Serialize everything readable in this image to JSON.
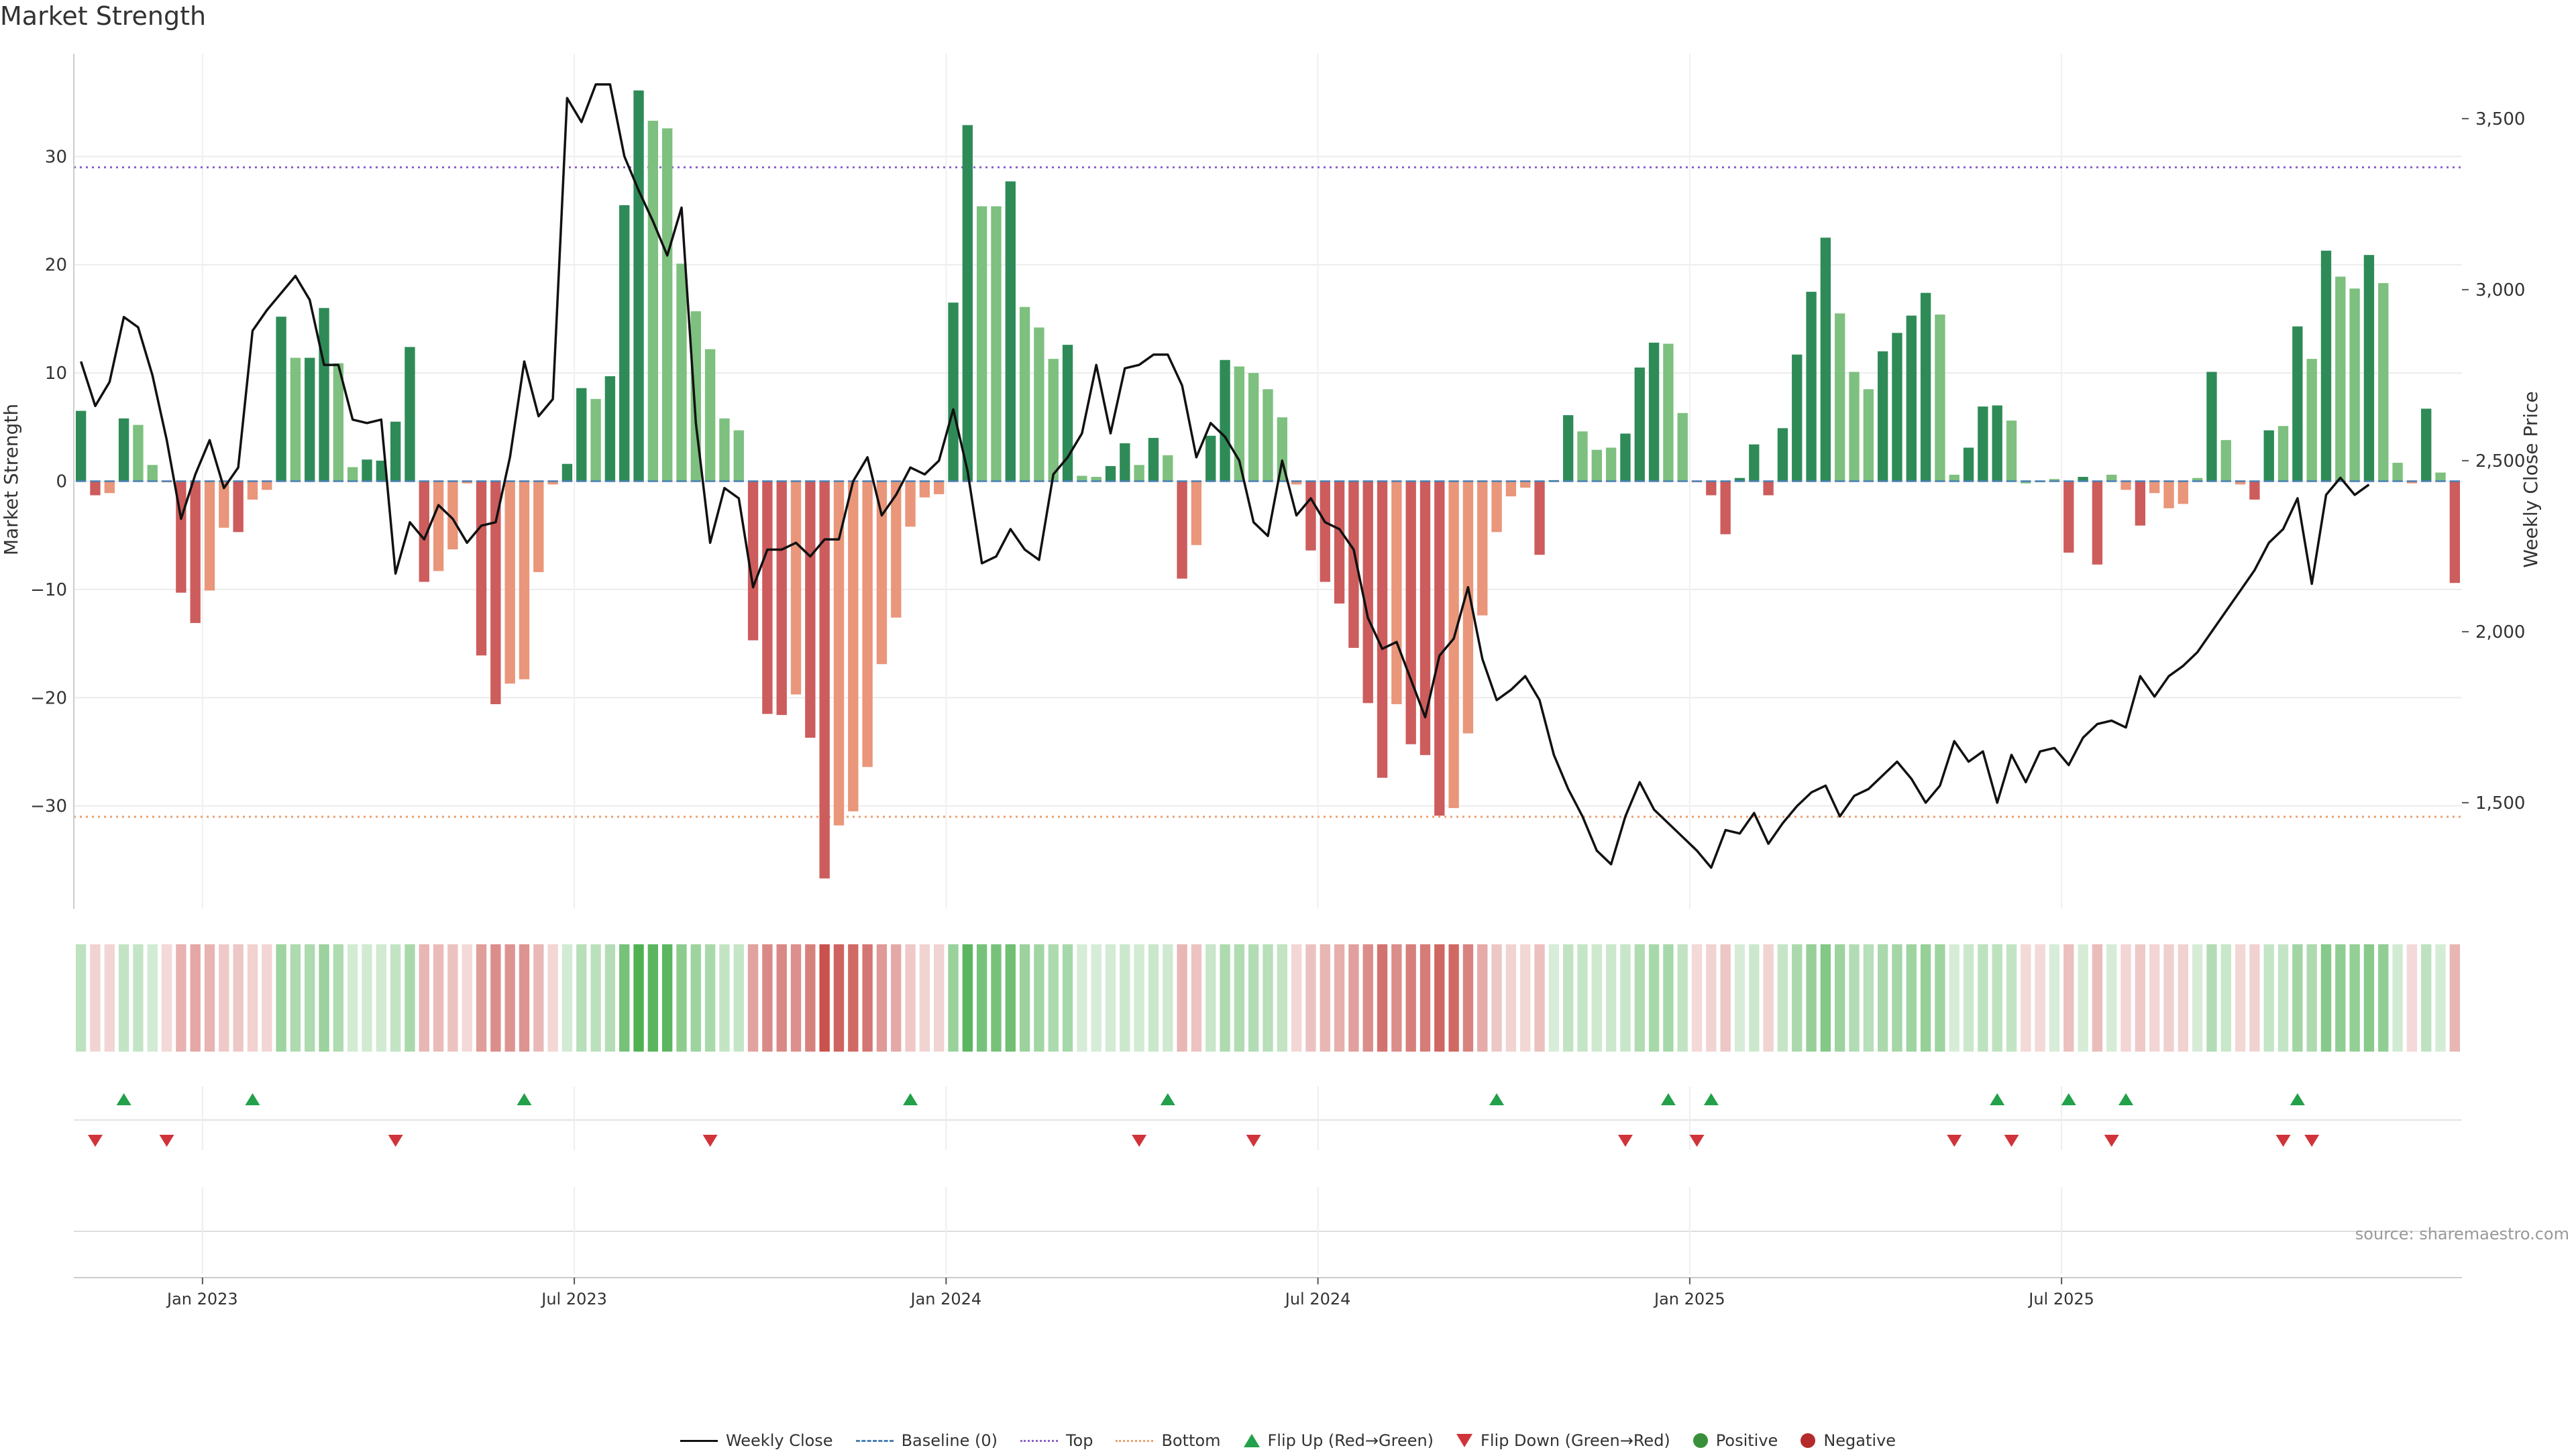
{
  "chart_data": {
    "type": "bar",
    "title": "Market Strength",
    "ylabel": "Market Strength",
    "y2label": "Weekly Close Price",
    "source": "source: sharemaestro.com",
    "ylim": [
      -39.5,
      39.5
    ],
    "y2lim": [
      1190,
      3690
    ],
    "yticks": [
      "−30",
      "−20",
      "−10",
      "0",
      "10",
      "20",
      "30"
    ],
    "yticks_values": [
      -30,
      -20,
      -10,
      0,
      10,
      20,
      30
    ],
    "y2ticks": [
      "1,500",
      "2,000",
      "2,500",
      "3,000",
      "3,500"
    ],
    "y2ticks_values": [
      1500,
      2000,
      2500,
      3000,
      3500
    ],
    "xticks": [
      "Jan 2023",
      "Jul 2023",
      "Jan 2024",
      "Jul 2024",
      "Jan 2025",
      "Jul 2025"
    ],
    "xticks_index": [
      9,
      35,
      61,
      87,
      113,
      139
    ],
    "top_level": 29,
    "bottom_level": -31,
    "grid": true,
    "legend_position": "bottom-center",
    "colors": {
      "positive_strong": "#2e8b57",
      "positive_weak": "#7ec07f",
      "negative_strong": "#cd5c5c",
      "negative_weak": "#e9967a",
      "close_line": "#111111",
      "baseline": "#4a7fb3",
      "top": "#8d62c9",
      "bottom": "#e9a06f",
      "flip_up": "#22a04a",
      "flip_down": "#d0343a"
    },
    "series": [
      {
        "name": "Market Strength",
        "values": [
          6.5,
          -1.3,
          -1.1,
          5.8,
          5.2,
          1.5,
          -0.1,
          -10.3,
          -13.1,
          -10.1,
          -4.3,
          -4.7,
          -1.7,
          -0.8,
          15.2,
          11.4,
          11.4,
          16.0,
          10.9,
          1.3,
          2.0,
          1.9,
          5.5,
          12.4,
          -9.3,
          -8.3,
          -6.3,
          -0.2,
          -16.1,
          -20.6,
          -18.7,
          -18.3,
          -8.4,
          -0.3,
          1.6,
          8.6,
          7.6,
          9.7,
          25.5,
          36.1,
          33.3,
          32.6,
          20.1,
          15.7,
          12.2,
          5.8,
          4.7,
          -14.7,
          -21.5,
          -21.6,
          -19.7,
          -23.7,
          -36.7,
          -31.8,
          -30.5,
          -26.4,
          -16.9,
          -12.6,
          -4.2,
          -1.5,
          -1.2,
          16.5,
          32.9,
          25.4,
          25.4,
          27.7,
          16.1,
          14.2,
          11.3,
          12.6,
          0.5,
          0.4,
          1.4,
          3.5,
          1.5,
          4.0,
          2.4,
          -9.0,
          -5.9,
          4.2,
          11.2,
          10.6,
          10.0,
          8.5,
          5.9,
          -0.3,
          -6.4,
          -9.3,
          -11.3,
          -15.4,
          -20.5,
          -27.4,
          -20.6,
          -24.3,
          -25.3,
          -30.9,
          -30.2,
          -23.3,
          -12.4,
          -4.7,
          -1.4,
          -0.6,
          -6.8,
          0.1,
          6.1,
          4.6,
          2.9,
          3.1,
          4.4,
          10.5,
          12.8,
          12.7,
          6.3,
          -0.1,
          -1.3,
          -4.9,
          0.3,
          3.4,
          -1.3,
          4.9,
          11.7,
          17.5,
          22.5,
          15.5,
          10.1,
          8.5,
          12.0,
          13.7,
          15.3,
          17.4,
          15.4,
          0.6,
          3.1,
          6.9,
          7.0,
          5.6,
          -0.2,
          -0.1,
          0.2,
          -6.6,
          0.4,
          -7.7,
          0.6,
          -0.8,
          -4.1,
          -1.1,
          -2.5,
          -2.1,
          0.3,
          10.1,
          3.8,
          -0.3,
          -1.7,
          4.7,
          5.1,
          14.3,
          11.3,
          21.3,
          18.9,
          17.8,
          20.9,
          18.3,
          1.7,
          -0.2,
          6.7,
          0.8,
          -9.4
        ],
        "bar_color": [
          "positive_strong",
          "negative_strong",
          "negative_weak",
          "positive_strong",
          "positive_weak",
          "positive_weak",
          "negative_weak",
          "negative_strong",
          "negative_strong",
          "negative_weak",
          "negative_weak",
          "negative_strong",
          "negative_weak",
          "negative_weak",
          "positive_strong",
          "positive_weak",
          "positive_strong",
          "positive_strong",
          "positive_weak",
          "positive_weak",
          "positive_strong",
          "positive_strong",
          "positive_strong",
          "positive_strong",
          "negative_strong",
          "negative_weak",
          "negative_weak",
          "negative_weak",
          "negative_strong",
          "negative_strong",
          "negative_weak",
          "negative_weak",
          "negative_weak",
          "negative_weak",
          "positive_strong",
          "positive_strong",
          "positive_weak",
          "positive_strong",
          "positive_strong",
          "positive_strong",
          "positive_weak",
          "positive_weak",
          "positive_weak",
          "positive_weak",
          "positive_weak",
          "positive_weak",
          "positive_weak",
          "negative_strong",
          "negative_strong",
          "negative_strong",
          "negative_weak",
          "negative_strong",
          "negative_strong",
          "negative_weak",
          "negative_weak",
          "negative_weak",
          "negative_weak",
          "negative_weak",
          "negative_weak",
          "negative_weak",
          "negative_weak",
          "positive_strong",
          "positive_strong",
          "positive_weak",
          "positive_weak",
          "positive_strong",
          "positive_weak",
          "positive_weak",
          "positive_weak",
          "positive_strong",
          "positive_weak",
          "positive_weak",
          "positive_strong",
          "positive_strong",
          "positive_weak",
          "positive_strong",
          "positive_weak",
          "negative_strong",
          "negative_weak",
          "positive_strong",
          "positive_strong",
          "positive_weak",
          "positive_weak",
          "positive_weak",
          "positive_weak",
          "negative_weak",
          "negative_strong",
          "negative_strong",
          "negative_strong",
          "negative_strong",
          "negative_strong",
          "negative_strong",
          "negative_weak",
          "negative_strong",
          "negative_strong",
          "negative_strong",
          "negative_weak",
          "negative_weak",
          "negative_weak",
          "negative_weak",
          "negative_weak",
          "negative_weak",
          "negative_strong",
          "positive_strong",
          "positive_strong",
          "positive_weak",
          "positive_weak",
          "positive_weak",
          "positive_strong",
          "positive_strong",
          "positive_strong",
          "positive_weak",
          "positive_weak",
          "negative_weak",
          "negative_strong",
          "negative_strong",
          "positive_strong",
          "positive_strong",
          "negative_strong",
          "positive_strong",
          "positive_strong",
          "positive_strong",
          "positive_strong",
          "positive_weak",
          "positive_weak",
          "positive_weak",
          "positive_strong",
          "positive_strong",
          "positive_strong",
          "positive_strong",
          "positive_weak",
          "positive_weak",
          "positive_strong",
          "positive_strong",
          "positive_strong",
          "positive_weak",
          "positive_weak",
          "positive_weak",
          "positive_weak",
          "negative_strong",
          "positive_strong",
          "negative_strong",
          "positive_weak",
          "negative_weak",
          "negative_strong",
          "negative_weak",
          "negative_weak",
          "negative_weak",
          "positive_weak",
          "positive_strong",
          "positive_weak",
          "negative_weak",
          "negative_strong",
          "positive_strong",
          "positive_weak",
          "positive_strong",
          "positive_weak",
          "positive_strong",
          "positive_weak",
          "positive_weak",
          "positive_strong",
          "positive_weak",
          "positive_weak",
          "negative_weak",
          "positive_strong",
          "positive_weak",
          "negative_strong"
        ]
      },
      {
        "name": "Weekly Close",
        "values": [
          2790,
          2660,
          2730,
          2920,
          2890,
          2750,
          2560,
          2330,
          2460,
          2560,
          2420,
          2480,
          2880,
          2940,
          2990,
          3040,
          2970,
          2780,
          2780,
          2620,
          2610,
          2620,
          2170,
          2320,
          2270,
          2370,
          2330,
          2260,
          2310,
          2320,
          2510,
          2790,
          2630,
          2680,
          3560,
          3490,
          3600,
          3600,
          3390,
          3290,
          3200,
          3100,
          3240,
          2610,
          2260,
          2420,
          2390,
          2130,
          2240,
          2240,
          2260,
          2220,
          2270,
          2270,
          2440,
          2510,
          2340,
          2400,
          2480,
          2460,
          2500,
          2650,
          2470,
          2200,
          2220,
          2300,
          2240,
          2210,
          2460,
          2510,
          2580,
          2780,
          2580,
          2770,
          2780,
          2810,
          2810,
          2720,
          2510,
          2610,
          2570,
          2500,
          2320,
          2280,
          2500,
          2340,
          2390,
          2320,
          2300,
          2240,
          2040,
          1950,
          1970,
          1860,
          1750,
          1930,
          1980,
          2130,
          1920,
          1800,
          1830,
          1870,
          1800,
          1640,
          1540,
          1460,
          1360,
          1320,
          1460,
          1560,
          1480,
          1440,
          1400,
          1360,
          1310,
          1420,
          1410,
          1470,
          1380,
          1440,
          1490,
          1530,
          1550,
          1460,
          1520,
          1540,
          1580,
          1620,
          1570,
          1500,
          1550,
          1680,
          1620,
          1650,
          1500,
          1640,
          1560,
          1650,
          1660,
          1610,
          1690,
          1730,
          1740,
          1720,
          1870,
          1810,
          1870,
          1900,
          1940,
          2000,
          2060,
          2120,
          2180,
          2260,
          2300,
          2390,
          2140,
          2400,
          2450,
          2400,
          2430
        ]
      }
    ],
    "flip_up_index": [
      3,
      12,
      31,
      58,
      76,
      99,
      111,
      114,
      134,
      139,
      143,
      155
    ],
    "flip_down_index": [
      1,
      6,
      22,
      44,
      74,
      82,
      108,
      113,
      131,
      135,
      142,
      154,
      156
    ],
    "heat_strip": "flip-colored strip of positive/negative runs under the main panel",
    "legend": [
      "Weekly Close",
      "Baseline (0)",
      "Top",
      "Bottom",
      "Flip Up (Red→Green)",
      "Flip Down (Green→Red)",
      "Positive",
      "Negative"
    ]
  }
}
